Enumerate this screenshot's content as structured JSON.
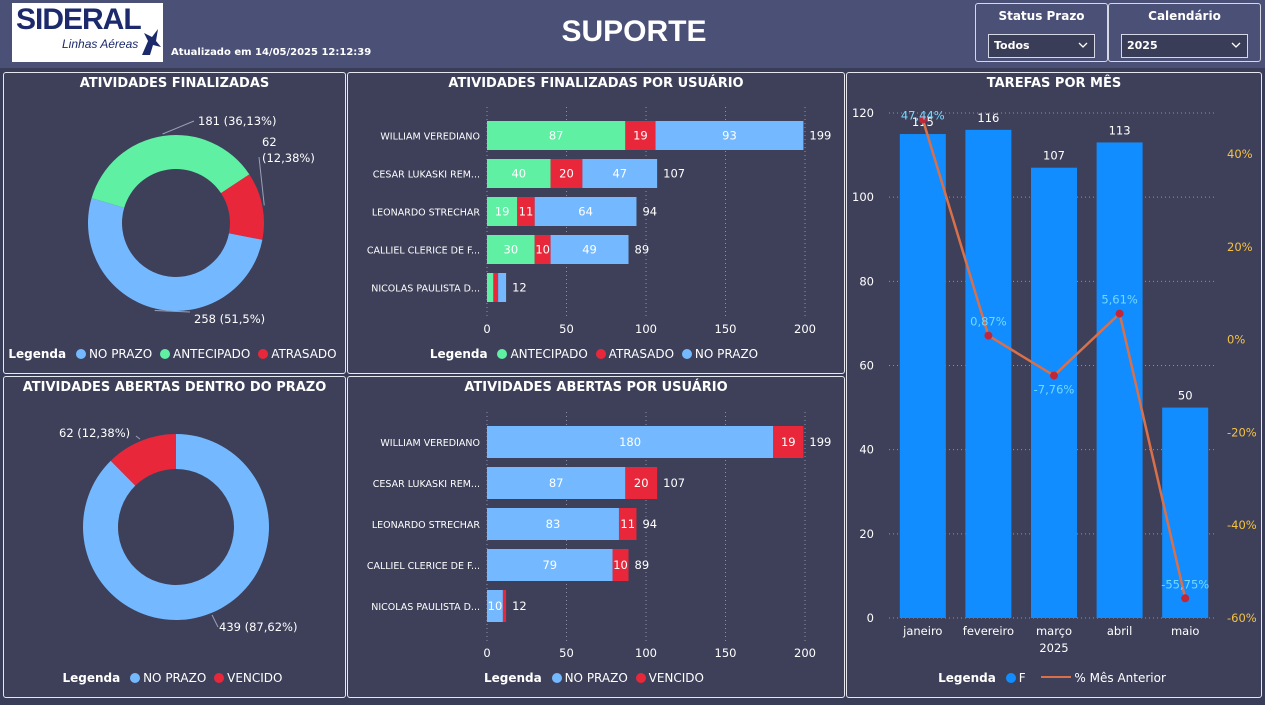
{
  "header": {
    "logo_text": "SIDERAL",
    "logo_sub": "Linhas Aéreas",
    "updated": "Atualizado em 14/05/2025 12:12:39",
    "title": "SUPORTE"
  },
  "filters": {
    "status_label": "Status Prazo",
    "status_value": "Todos",
    "calendar_label": "Calendário",
    "calendar_value": "2025"
  },
  "colors": {
    "no_prazo": "#74b9ff",
    "antecipado": "#5ff0a4",
    "atrasado": "#e8283a",
    "bar_blue": "#118dff",
    "line": "#d9704a",
    "marker": "#c0283a",
    "pct_axis": "#f5c242"
  },
  "panels": {
    "finalizadas": {
      "title": "ATIVIDADES FINALIZADAS",
      "legend_title": "Legenda",
      "legend": [
        "NO PRAZO",
        "ANTECIPADO",
        "ATRASADO"
      ]
    },
    "por_usuario": {
      "title": "ATIVIDADES FINALIZADAS POR USUÁRIO",
      "legend_title": "Legenda",
      "legend": [
        "ANTECIPADO",
        "ATRASADO",
        "NO PRAZO"
      ]
    },
    "abertas_prazo": {
      "title": "ATIVIDADES ABERTAS DENTRO DO PRAZO",
      "legend_title": "Legenda",
      "legend": [
        "NO PRAZO",
        "VENCIDO"
      ]
    },
    "abertas_usuario": {
      "title": "ATIVIDADES ABERTAS POR USUÁRIO",
      "legend_title": "Legenda",
      "legend": [
        "NO PRAZO",
        "VENCIDO"
      ]
    },
    "tarefas_mes": {
      "title": "TAREFAS POR MÊS",
      "legend_title": "Legenda",
      "legend": [
        "F",
        "% Mês Anterior"
      ]
    }
  },
  "chart_data": [
    {
      "type": "pie",
      "title": "ATIVIDADES FINALIZADAS",
      "slices": [
        {
          "name": "NO PRAZO",
          "value": 258,
          "label": "258 (51,5%)"
        },
        {
          "name": "ANTECIPADO",
          "value": 181,
          "label": "181 (36,13%)"
        },
        {
          "name": "ATRASADO",
          "value": 62,
          "label": "62 (12,38%)"
        }
      ]
    },
    {
      "type": "bar",
      "title": "ATIVIDADES FINALIZADAS POR USUÁRIO",
      "categories": [
        "WILLIAM VEREDIANO",
        "CESAR LUKASKI REM...",
        "LEONARDO STRECHAR",
        "CALLIEL CLERICE DE F...",
        "NICOLAS PAULISTA D..."
      ],
      "series": [
        {
          "name": "ANTECIPADO",
          "values": [
            87,
            40,
            19,
            30,
            4
          ]
        },
        {
          "name": "ATRASADO",
          "values": [
            19,
            20,
            11,
            10,
            3
          ]
        },
        {
          "name": "NO PRAZO",
          "values": [
            93,
            47,
            64,
            49,
            5
          ]
        }
      ],
      "totals": [
        199,
        107,
        94,
        89,
        12
      ],
      "xticks": [
        0,
        50,
        100,
        150,
        200
      ],
      "xlim": [
        0,
        200
      ]
    },
    {
      "type": "pie",
      "title": "ATIVIDADES ABERTAS DENTRO DO PRAZO",
      "slices": [
        {
          "name": "NO PRAZO",
          "value": 439,
          "label": "439 (87,62%)"
        },
        {
          "name": "VENCIDO",
          "value": 62,
          "label": "62 (12,38%)"
        }
      ]
    },
    {
      "type": "bar",
      "title": "ATIVIDADES ABERTAS POR USUÁRIO",
      "categories": [
        "WILLIAM VEREDIANO",
        "CESAR LUKASKI REM...",
        "LEONARDO STRECHAR",
        "CALLIEL CLERICE DE F...",
        "NICOLAS PAULISTA D..."
      ],
      "series": [
        {
          "name": "NO PRAZO",
          "values": [
            180,
            87,
            83,
            79,
            10
          ]
        },
        {
          "name": "VENCIDO",
          "values": [
            19,
            20,
            11,
            10,
            2
          ]
        }
      ],
      "totals": [
        199,
        107,
        94,
        89,
        12
      ],
      "xticks": [
        0,
        50,
        100,
        150,
        200
      ],
      "xlim": [
        0,
        200
      ]
    },
    {
      "type": "bar",
      "title": "TAREFAS POR MÊS",
      "categories": [
        "janeiro",
        "fevereiro",
        "março",
        "abril",
        "maio"
      ],
      "xlabel": "2025",
      "series": [
        {
          "name": "F",
          "values": [
            115,
            116,
            107,
            113,
            50
          ]
        },
        {
          "name": "% Mês Anterior",
          "values": [
            47.44,
            0.87,
            -7.76,
            5.61,
            -55.75
          ],
          "labels": [
            "47,44%",
            "0,87%",
            "-7,76%",
            "5,61%",
            "-55,75%"
          ]
        }
      ],
      "ylim": [
        0,
        120
      ],
      "yticks": [
        0,
        20,
        40,
        60,
        80,
        100,
        120
      ],
      "y2lim": [
        -60,
        50
      ],
      "y2ticks": [
        "40%",
        "20%",
        "0%",
        "-20%",
        "-40%",
        "-60%"
      ],
      "y2tick_values": [
        40,
        20,
        0,
        -20,
        -40,
        -60
      ]
    }
  ]
}
